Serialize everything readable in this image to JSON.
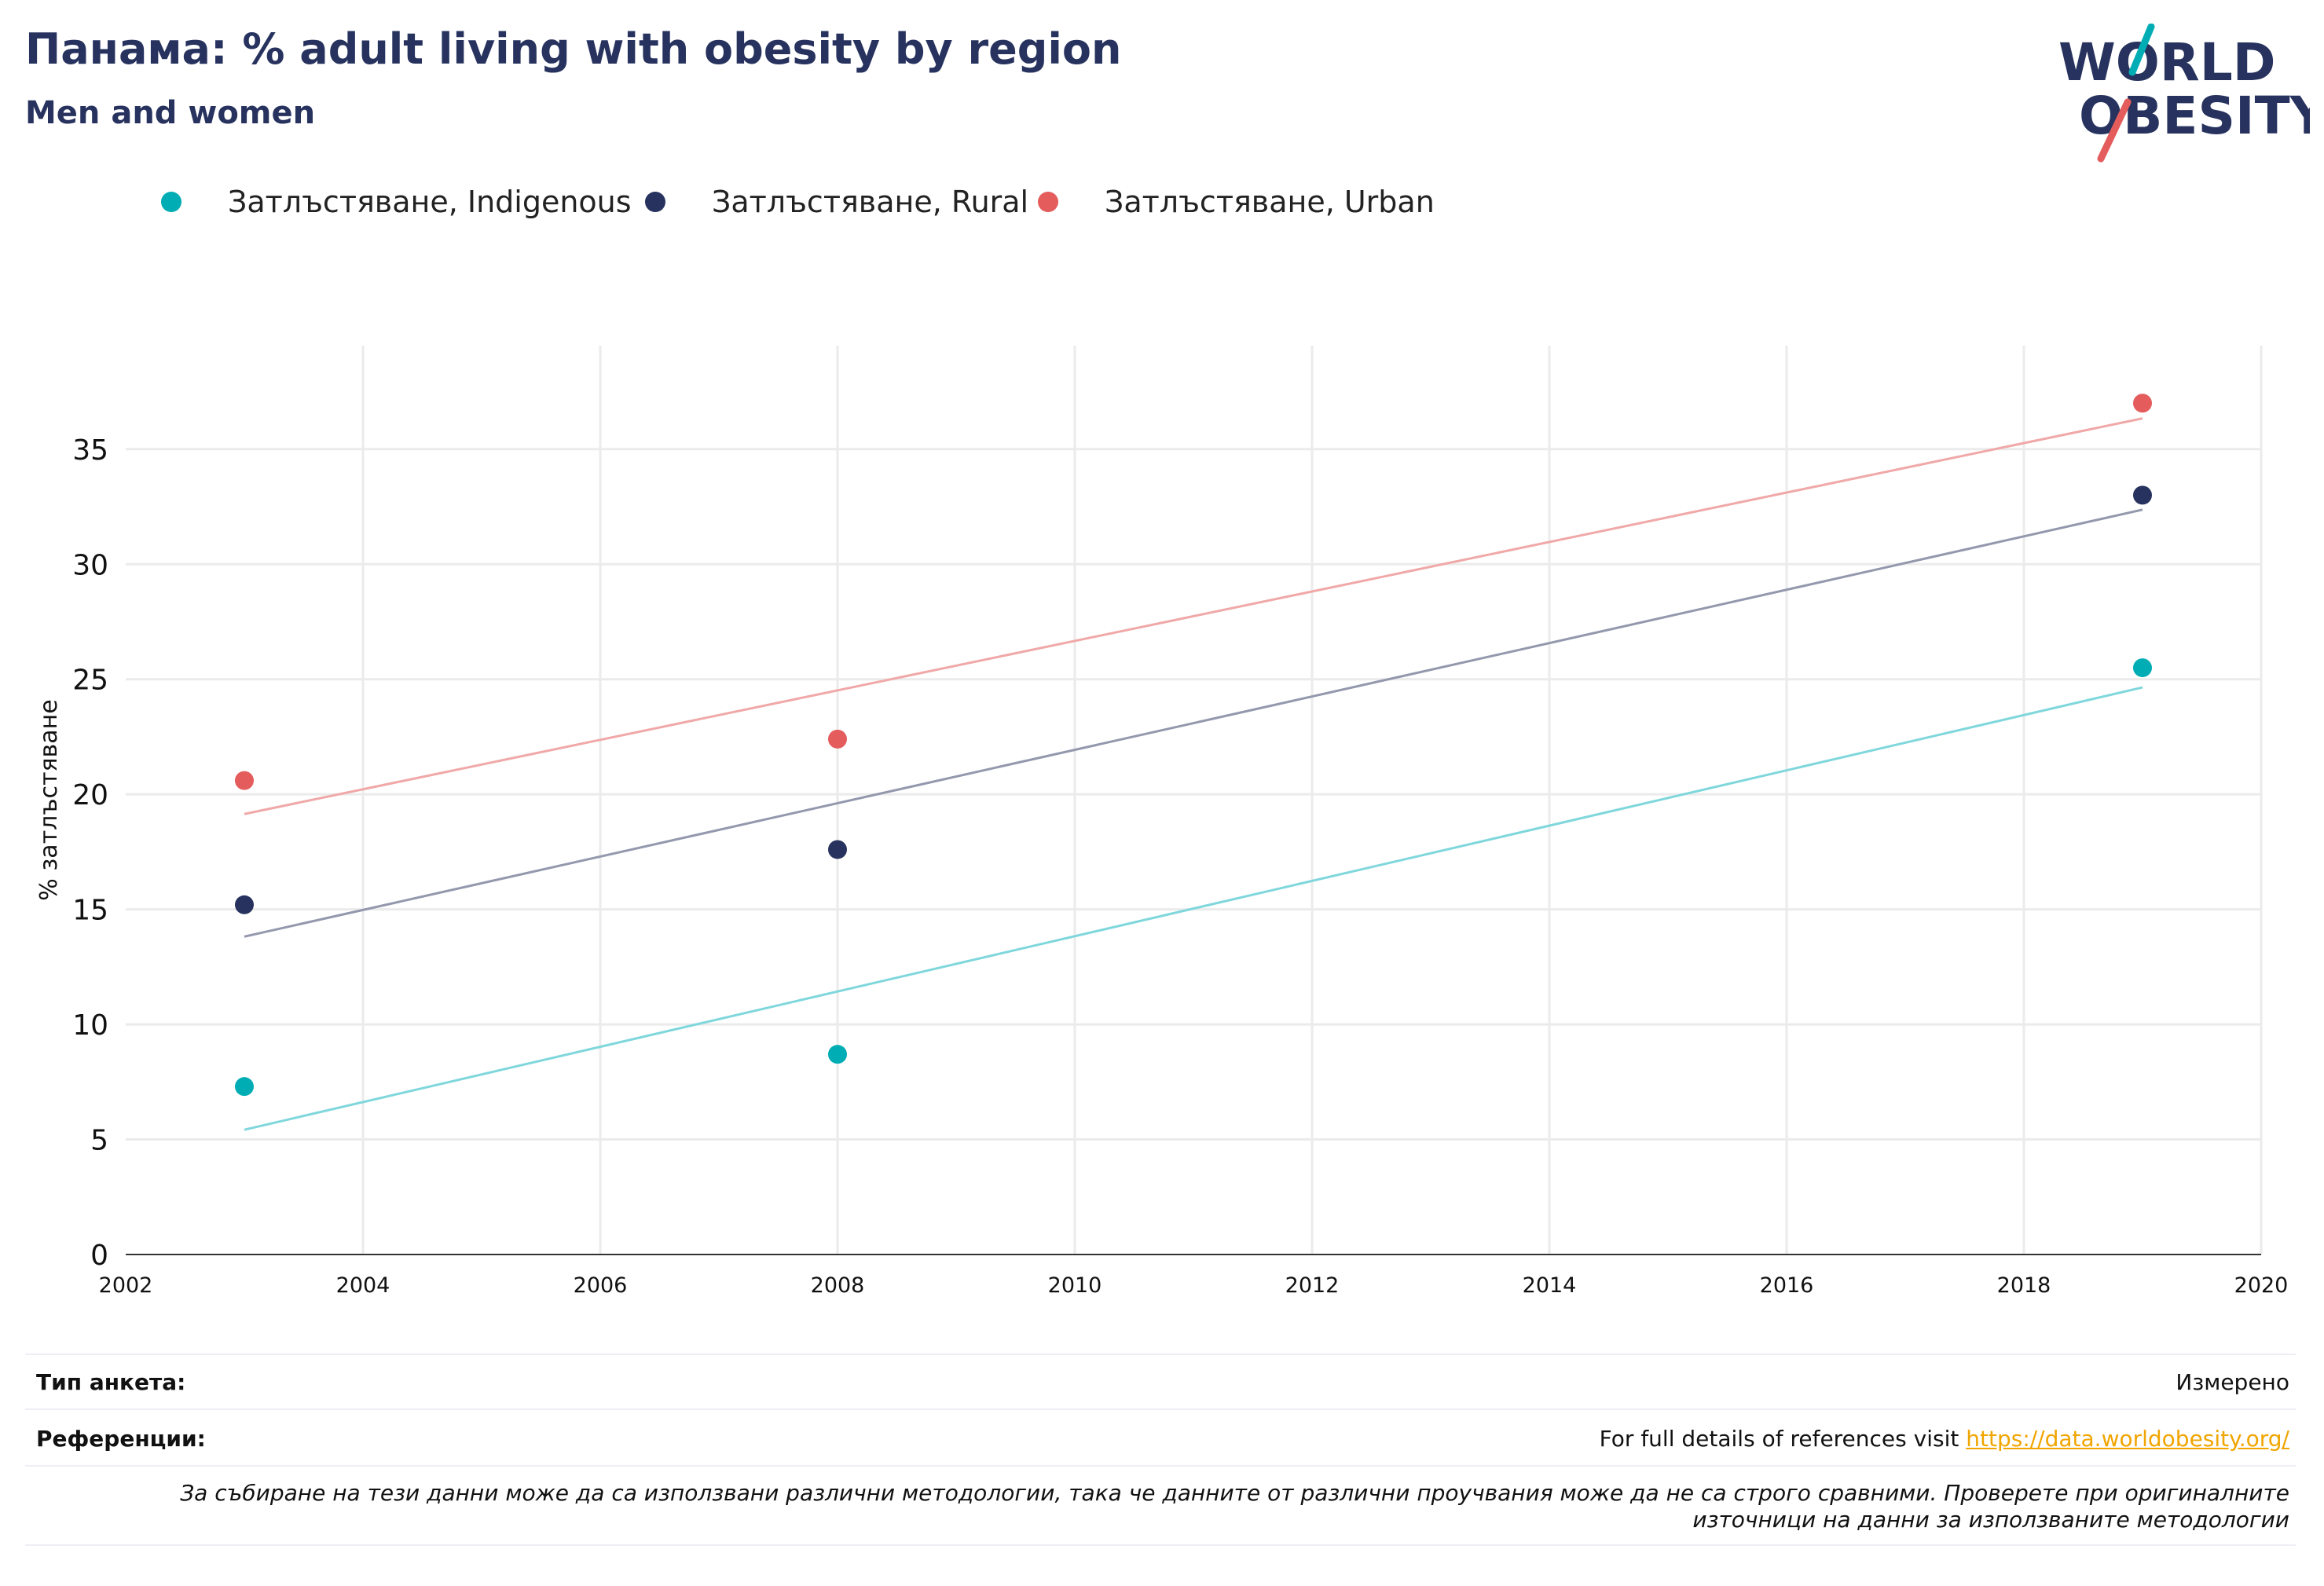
{
  "header": {
    "title": "Панама: % adult living with obesity by region",
    "subtitle": "Men and women"
  },
  "logo": {
    "line1": "WORLD",
    "line2": "OBESITY",
    "icon": "world-obesity-logo"
  },
  "colors": {
    "title": "#27335e",
    "indigenous": "#00adb5",
    "rural": "#27335e",
    "urban": "#e45c5c",
    "grid": "#ebebeb"
  },
  "chart_data": {
    "type": "scatter",
    "title": "Панама: % adult living with obesity by region",
    "subtitle": "Men and women",
    "xlabel": "",
    "ylabel": "% затлъстяване",
    "xlim": [
      2002,
      2020
    ],
    "ylim": [
      0,
      39.5
    ],
    "x_ticks": [
      2002,
      2004,
      2006,
      2008,
      2010,
      2012,
      2014,
      2016,
      2018,
      2020
    ],
    "y_ticks": [
      0,
      5,
      10,
      15,
      20,
      25,
      30,
      35
    ],
    "grid": true,
    "legend_position": "top-left",
    "trendlines": true,
    "series": [
      {
        "name": "Затлъстяване, Indigenous",
        "color": "#00adb5",
        "line_color": "#7fd7dc",
        "x": [
          2003,
          2008,
          2019
        ],
        "y": [
          7.3,
          8.7,
          25.5
        ]
      },
      {
        "name": "Затлъстяване, Rural",
        "color": "#27335e",
        "line_color": "#9398ad",
        "x": [
          2003,
          2008,
          2019
        ],
        "y": [
          15.2,
          17.6,
          33.0
        ]
      },
      {
        "name": "Затлъстяване, Urban",
        "color": "#e45c5c",
        "line_color": "#f0a8a8",
        "x": [
          2003,
          2008,
          2019
        ],
        "y": [
          20.6,
          22.4,
          37.0
        ]
      }
    ]
  },
  "footer": {
    "survey_type_label": "Тип анкета:",
    "survey_type_value": "Измерено",
    "references_label": "Референции:",
    "references_text": "For full details of references visit ",
    "references_link": "https://data.worldobesity.org/",
    "note": "За събиране на тези данни може да са използвани различни методологии, така че данните от различни проучвания може да не са строго сравними. Проверете при оригиналните източници на данни за използваните методологии"
  }
}
